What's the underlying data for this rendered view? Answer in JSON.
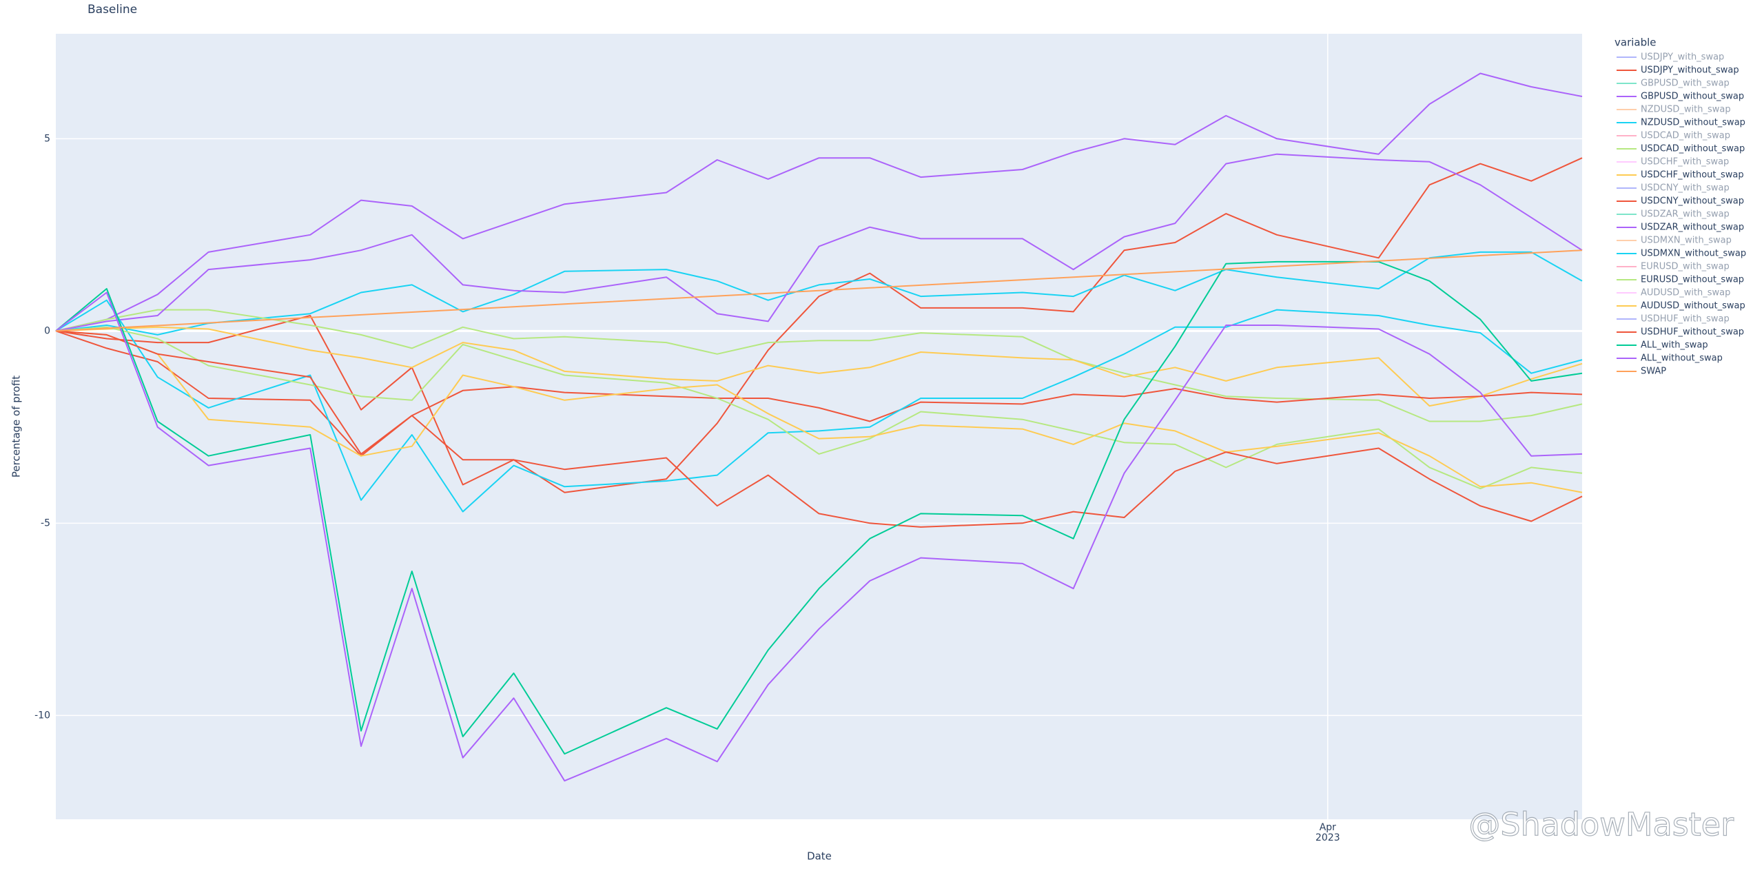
{
  "chart_data": {
    "type": "line",
    "title": "Baseline",
    "x_label": "Date",
    "y_label": "Percentage of profit",
    "legend_title": "variable",
    "x": [
      0,
      1,
      2,
      3,
      5,
      6,
      7,
      8,
      9,
      10,
      12,
      13,
      14,
      15,
      16,
      17,
      19,
      20,
      21,
      22,
      23,
      24,
      26,
      27,
      28,
      29,
      30
    ],
    "xlim": [
      0,
      30
    ],
    "xticks": [
      {
        "value": 25,
        "label": "Apr",
        "sublabel": "2023"
      }
    ],
    "ylim": [
      -12.7,
      7.73
    ],
    "yticks": [
      -10,
      -5,
      0,
      5
    ],
    "grid": true,
    "series": [
      {
        "name": "USDJPY_with_swap",
        "color": "#636efa",
        "visible": false
      },
      {
        "name": "USDJPY_without_swap",
        "color": "#EF553B",
        "values": [
          0,
          -0.2,
          -0.3,
          -0.3,
          0.4,
          -2.05,
          -0.95,
          -4.0,
          -3.35,
          -4.2,
          -3.85,
          -2.4,
          -0.5,
          0.9,
          1.5,
          0.6,
          0.6,
          0.5,
          2.1,
          2.3,
          3.05,
          2.5,
          1.9,
          3.8,
          4.35,
          3.9,
          4.5
        ]
      },
      {
        "name": "GBPUSD_with_swap",
        "color": "#00cc96",
        "visible": false
      },
      {
        "name": "GBPUSD_without_swap",
        "color": "#ab63fa",
        "values": [
          0,
          0.3,
          0.95,
          2.05,
          2.5,
          3.4,
          3.25,
          2.4,
          2.85,
          3.3,
          3.6,
          4.45,
          3.95,
          4.5,
          4.5,
          4.0,
          4.2,
          4.65,
          5.0,
          4.85,
          5.6,
          5.0,
          4.6,
          5.9,
          6.7,
          6.35,
          6.1
        ]
      },
      {
        "name": "NZDUSD_with_swap",
        "color": "#FFA15A",
        "visible": false
      },
      {
        "name": "NZDUSD_without_swap",
        "color": "#19d3f3",
        "values": [
          0,
          0.15,
          -0.1,
          0.2,
          0.45,
          1.0,
          1.2,
          0.5,
          0.95,
          1.55,
          1.6,
          1.3,
          0.8,
          1.2,
          1.35,
          0.9,
          1.0,
          0.9,
          1.45,
          1.05,
          1.6,
          1.4,
          1.1,
          1.9,
          2.05,
          2.05,
          1.3
        ]
      },
      {
        "name": "USDCAD_with_swap",
        "color": "#FF6692",
        "visible": false
      },
      {
        "name": "USDCAD_without_swap",
        "color": "#B6E880",
        "values": [
          0,
          0.3,
          0.55,
          0.55,
          0.15,
          -0.1,
          -0.45,
          0.1,
          -0.2,
          -0.15,
          -0.3,
          -0.6,
          -0.3,
          -0.25,
          -0.25,
          -0.05,
          -0.15,
          -0.75,
          -1.1,
          -1.4,
          -1.7,
          -1.75,
          -1.8,
          -2.35,
          -2.35,
          -2.2,
          -1.9
        ]
      },
      {
        "name": "USDCHF_with_swap",
        "color": "#FF97FF",
        "visible": false
      },
      {
        "name": "USDCHF_without_swap",
        "color": "#FECB52",
        "values": [
          0,
          0.05,
          0.1,
          0.05,
          -0.5,
          -0.7,
          -0.95,
          -0.3,
          -0.5,
          -1.05,
          -1.25,
          -1.3,
          -0.9,
          -1.1,
          -0.95,
          -0.55,
          -0.7,
          -0.75,
          -1.2,
          -0.95,
          -1.3,
          -0.95,
          -0.7,
          -1.95,
          -1.7,
          -1.25,
          -0.85
        ]
      },
      {
        "name": "USDCNY_with_swap",
        "color": "#636efa",
        "visible": false
      },
      {
        "name": "USDCNY_without_swap",
        "color": "#EF553B",
        "values": [
          0,
          -0.45,
          -0.8,
          -1.75,
          -1.8,
          -3.25,
          -2.2,
          -1.55,
          -1.45,
          -1.6,
          -1.7,
          -1.75,
          -1.75,
          -2.0,
          -2.35,
          -1.85,
          -1.9,
          -1.65,
          -1.7,
          -1.5,
          -1.75,
          -1.85,
          -1.65,
          -1.75,
          -1.7,
          -1.6,
          -1.65
        ]
      },
      {
        "name": "USDZAR_with_swap",
        "color": "#00cc96",
        "visible": false
      },
      {
        "name": "USDZAR_without_swap",
        "color": "#ab63fa",
        "values": [
          0,
          0.25,
          0.4,
          1.6,
          1.85,
          2.1,
          2.5,
          1.2,
          1.05,
          1.0,
          1.4,
          0.45,
          0.25,
          2.2,
          2.7,
          2.4,
          2.4,
          1.6,
          2.45,
          2.8,
          4.35,
          4.6,
          4.45,
          4.4,
          3.8,
          2.95,
          2.1
        ]
      },
      {
        "name": "USDMXN_with_swap",
        "color": "#FFA15A",
        "visible": false
      },
      {
        "name": "USDMXN_without_swap",
        "color": "#19d3f3",
        "values": [
          0,
          0.8,
          -1.2,
          -2.0,
          -1.15,
          -4.4,
          -2.7,
          -4.7,
          -3.5,
          -4.05,
          -3.9,
          -3.75,
          -2.65,
          -2.6,
          -2.5,
          -1.75,
          -1.75,
          -1.2,
          -0.6,
          0.1,
          0.1,
          0.55,
          0.4,
          0.15,
          -0.05,
          -1.1,
          -0.75
        ]
      },
      {
        "name": "EURUSD_with_swap",
        "color": "#FF6692",
        "visible": false
      },
      {
        "name": "EURUSD_without_swap",
        "color": "#B6E880",
        "values": [
          0,
          0.1,
          -0.2,
          -0.9,
          -1.4,
          -1.7,
          -1.8,
          -0.35,
          -0.75,
          -1.15,
          -1.35,
          -1.75,
          -2.3,
          -3.2,
          -2.8,
          -2.1,
          -2.3,
          -2.6,
          -2.9,
          -2.95,
          -3.55,
          -2.95,
          -2.55,
          -3.55,
          -4.1,
          -3.55,
          -3.7
        ]
      },
      {
        "name": "AUDUSD_with_swap",
        "color": "#FF97FF",
        "visible": false
      },
      {
        "name": "AUDUSD_without_swap",
        "color": "#FECB52",
        "values": [
          0,
          -0.1,
          -0.6,
          -2.3,
          -2.5,
          -3.25,
          -3.0,
          -1.15,
          -1.45,
          -1.8,
          -1.5,
          -1.4,
          -2.15,
          -2.8,
          -2.75,
          -2.45,
          -2.55,
          -2.95,
          -2.4,
          -2.6,
          -3.15,
          -3.0,
          -2.65,
          -3.25,
          -4.05,
          -3.95,
          -4.2
        ]
      },
      {
        "name": "USDHUF_with_swap",
        "color": "#636efa",
        "visible": false
      },
      {
        "name": "USDHUF_without_swap",
        "color": "#EF553B",
        "values": [
          0,
          -0.1,
          -0.6,
          -0.8,
          -1.2,
          -3.2,
          -2.2,
          -3.35,
          -3.35,
          -3.6,
          -3.3,
          -4.55,
          -3.75,
          -4.75,
          -5.0,
          -5.1,
          -5.0,
          -4.7,
          -4.85,
          -3.65,
          -3.15,
          -3.45,
          -3.05,
          -3.85,
          -4.55,
          -4.95,
          -4.3
        ]
      },
      {
        "name": "ALL_with_swap",
        "color": "#00cc96",
        "values": [
          0,
          1.1,
          -2.35,
          -3.25,
          -2.7,
          -10.4,
          -6.25,
          -10.55,
          -8.9,
          -11.0,
          -9.8,
          -10.35,
          -8.3,
          -6.7,
          -5.4,
          -4.75,
          -4.8,
          -5.4,
          -2.3,
          -0.4,
          1.75,
          1.8,
          1.8,
          1.3,
          0.3,
          -1.3,
          -1.1
        ]
      },
      {
        "name": "ALL_without_swap",
        "color": "#ab63fa",
        "values": [
          0,
          1.0,
          -2.5,
          -3.5,
          -3.05,
          -10.8,
          -6.7,
          -11.1,
          -9.55,
          -11.7,
          -10.6,
          -11.2,
          -9.2,
          -7.75,
          -6.5,
          -5.9,
          -6.05,
          -6.7,
          -3.7,
          -1.8,
          0.15,
          0.15,
          0.05,
          -0.6,
          -1.6,
          -3.25,
          -3.2
        ]
      },
      {
        "name": "SWAP",
        "color": "#FFA15A",
        "values": [
          0,
          0.07,
          0.14,
          0.21,
          0.35,
          0.42,
          0.49,
          0.56,
          0.63,
          0.7,
          0.84,
          0.91,
          0.98,
          1.05,
          1.12,
          1.19,
          1.33,
          1.4,
          1.47,
          1.54,
          1.61,
          1.68,
          1.82,
          1.89,
          1.96,
          2.03,
          2.1
        ]
      }
    ]
  },
  "watermark": "@ShadowMaster"
}
